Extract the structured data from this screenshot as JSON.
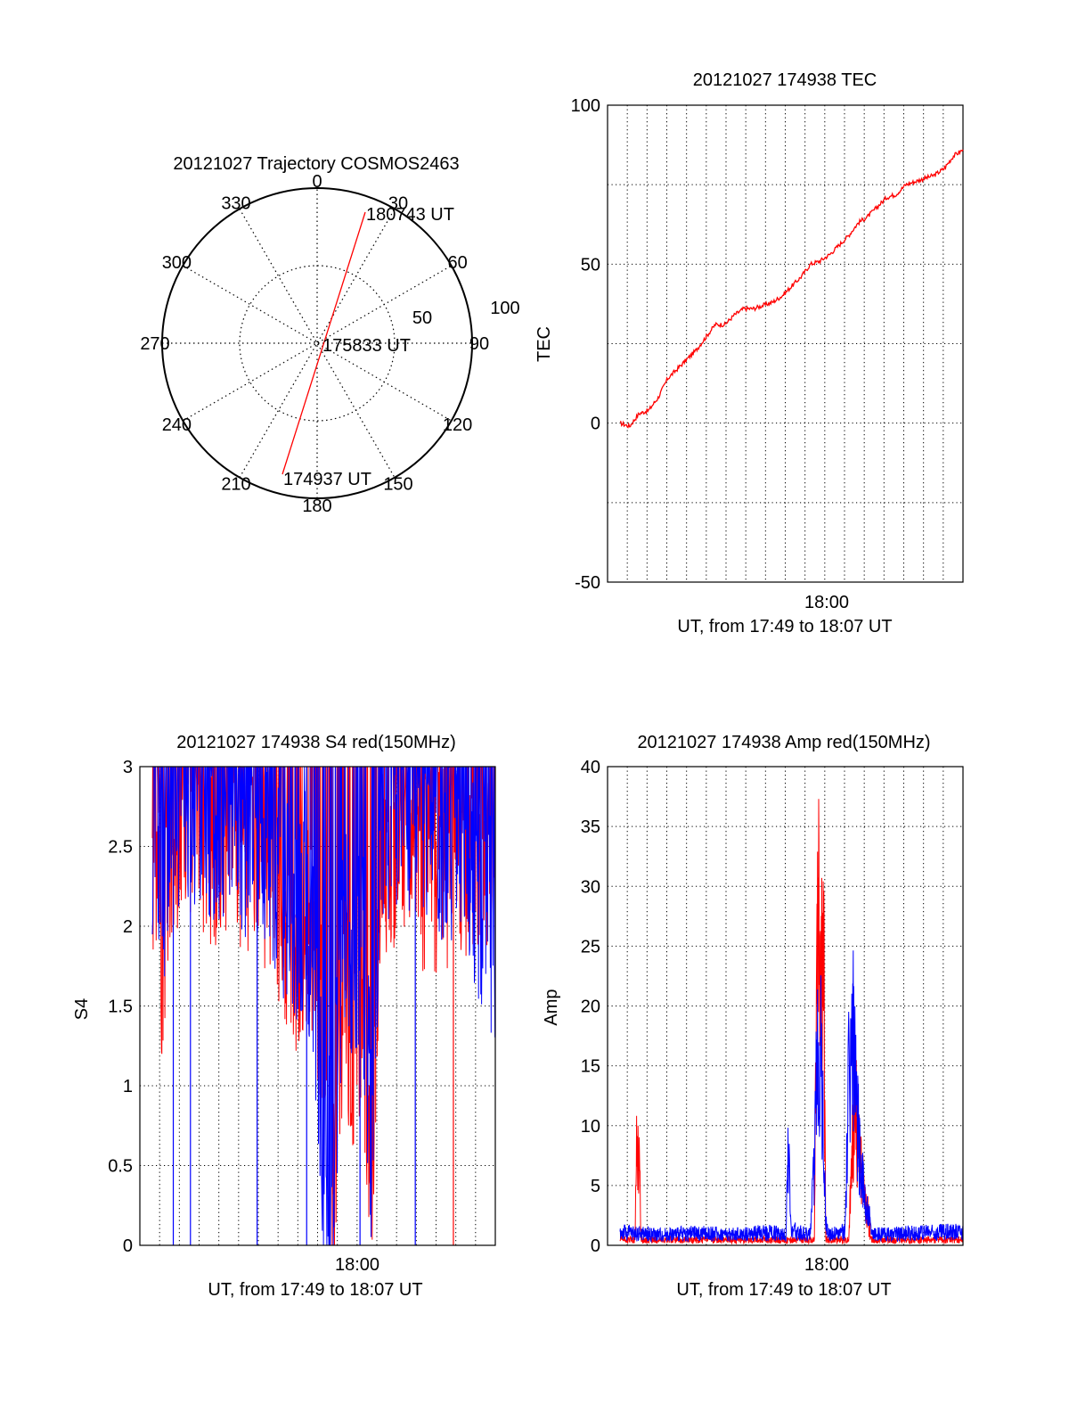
{
  "chart_data": [
    {
      "type": "polar",
      "title": "20121027 Trajectory COSMOS2463",
      "azimuth_labels": [
        "0",
        "30",
        "60",
        "90",
        "120",
        "150",
        "180",
        "210",
        "240",
        "270",
        "300",
        "330"
      ],
      "radial_labels": [
        "50",
        "100"
      ],
      "grid": true,
      "track": {
        "color": "#ff0000",
        "points": [
          {
            "az": 200,
            "zenith": 90
          },
          {
            "az": 200,
            "zenith": 0
          },
          {
            "az": 23,
            "zenith": 0
          },
          {
            "az": 23,
            "zenith": 90
          }
        ]
      },
      "annotations": [
        "180743 UT",
        "175833 UT",
        "174937 UT"
      ]
    },
    {
      "type": "line",
      "title": "20121027 174938 TEC",
      "xlabel": "UT, from 17:49 to 18:07 UT",
      "ylabel": "TEC",
      "xtick_labels": [
        "18:00"
      ],
      "ytick_labels": [
        "-50",
        "0",
        "50",
        "100"
      ],
      "ylim": [
        -50,
        100
      ],
      "grid": true,
      "series": [
        {
          "color": "#ff0000",
          "time_min": [
            0.0,
            0.5,
            1.0,
            1.5,
            2.0,
            2.5,
            3.0,
            3.5,
            4.0,
            4.5,
            5.0,
            5.5,
            6.0,
            6.5,
            7.0,
            7.5,
            8.0,
            8.5,
            9.0,
            9.5,
            10.0,
            10.5,
            11.0,
            11.5,
            12.0,
            12.5,
            13.0,
            13.5,
            14.0,
            14.5,
            15.0,
            15.5,
            16.0,
            16.5,
            17.0,
            17.5,
            18.0
          ],
          "values": [
            0,
            -1,
            3,
            4,
            8,
            14,
            17,
            20,
            23,
            27,
            31,
            31,
            34,
            36,
            36,
            37,
            38,
            40,
            43,
            46,
            50,
            51,
            53,
            56,
            59,
            63,
            65,
            68,
            71,
            72,
            75,
            76,
            77,
            78,
            80,
            84,
            86
          ]
        }
      ]
    },
    {
      "type": "line",
      "title": "20121027 174938 S4 red(150MHz)",
      "xlabel": "UT, from 17:49 to 18:07 UT",
      "ylabel": "S4",
      "xtick_labels": [
        "18:00"
      ],
      "ytick_labels": [
        "0",
        "0.5",
        "1",
        "1.5",
        "2",
        "2.5",
        "3"
      ],
      "ylim": [
        0,
        3
      ],
      "grid": true,
      "series": [
        {
          "color": "#ff0000",
          "time_min": [
            0,
            0.5,
            1,
            1.5,
            2,
            2.5,
            3,
            3.5,
            4,
            4.5,
            5,
            5.5,
            6,
            6.5,
            7,
            7.5,
            8,
            8.5,
            9,
            9.5,
            10,
            10.5,
            11,
            11.5,
            12,
            12.5,
            13,
            13.5,
            14,
            14.5,
            15,
            15.5,
            16,
            16.5,
            17,
            17.5,
            18
          ],
          "values": [
            2.1,
            1.6,
            2.3,
            2.4,
            2.4,
            2.4,
            2.3,
            2.3,
            2.4,
            2.3,
            2.2,
            2.3,
            2.0,
            2.0,
            1.8,
            1.6,
            1.8,
            1.4,
            1.3,
            0.2,
            1.2,
            1.0,
            1.3,
            0.3,
            2.0,
            2.2,
            2.4,
            2.3,
            2.2,
            2.0,
            2.1,
            2.0,
            2.2,
            2.1,
            2.3,
            2.2,
            2.5
          ]
        },
        {
          "color": "#0000ff",
          "time_min": [
            0,
            0.5,
            1,
            1.5,
            2,
            2.5,
            3,
            3.5,
            4,
            4.5,
            5,
            5.5,
            6,
            6.5,
            7,
            7.5,
            8,
            8.5,
            9,
            9.5,
            10,
            10.5,
            11,
            11.5,
            12,
            12.5,
            13,
            13.5,
            14,
            14.5,
            15,
            15.5,
            16,
            16.5,
            17,
            17.5,
            18
          ],
          "values": [
            2.3,
            1.9,
            2.5,
            2.5,
            2.5,
            2.4,
            2.4,
            2.4,
            2.5,
            2.4,
            2.3,
            2.4,
            2.2,
            2.1,
            1.9,
            1.8,
            1.9,
            1.5,
            0.3,
            0.2,
            1.8,
            1.6,
            1.7,
            0.4,
            2.3,
            2.4,
            2.6,
            2.5,
            2.4,
            2.2,
            2.3,
            2.2,
            2.4,
            2.3,
            2.0,
            1.8,
            1.7
          ]
        }
      ]
    },
    {
      "type": "line",
      "title": "20121027 174938 Amp red(150MHz)",
      "xlabel": "UT, from 17:49 to 18:07 UT",
      "ylabel": "Amp",
      "xtick_labels": [
        "18:00"
      ],
      "ytick_labels": [
        "0",
        "5",
        "10",
        "15",
        "20",
        "25",
        "30",
        "35",
        "40"
      ],
      "ylim": [
        0,
        40
      ],
      "grid": true,
      "series": [
        {
          "color": "#ff0000",
          "time_min": [
            0,
            0.8,
            0.85,
            0.9,
            1.0,
            1.05,
            1.1,
            9.5,
            10.2,
            10.3,
            10.4,
            10.5,
            10.7,
            10.8,
            12.0,
            12.3,
            12.5,
            12.7,
            13.0,
            13.2,
            13.3,
            18
          ],
          "values": [
            0.5,
            0.5,
            11,
            12,
            10,
            7,
            0.5,
            0.5,
            0.5,
            30,
            39,
            35,
            28,
            0.5,
            0.5,
            18,
            12,
            8,
            3,
            0.5,
            0.5,
            0.5
          ]
        },
        {
          "color": "#0000ff",
          "time_min": [
            0,
            2,
            4,
            6,
            8,
            8.7,
            8.8,
            8.9,
            9.0,
            9.2,
            10.0,
            10.2,
            10.4,
            10.6,
            10.8,
            11.0,
            11.8,
            12.0,
            12.2,
            12.4,
            12.8,
            13.2,
            13.5,
            15,
            18
          ],
          "values": [
            1.2,
            1.0,
            1.1,
            1.0,
            1.2,
            1.0,
            9.5,
            8,
            1.0,
            1.3,
            1.0,
            10,
            26,
            20,
            2,
            1.0,
            1.2,
            19,
            25,
            15,
            6,
            1.0,
            1.0,
            1.1,
            1.3
          ]
        }
      ]
    }
  ]
}
